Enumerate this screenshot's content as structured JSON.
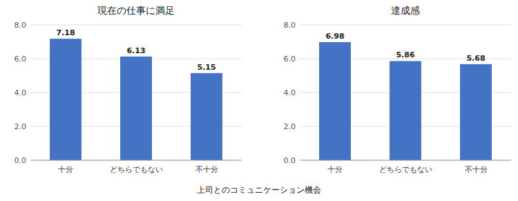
{
  "chart_data": [
    {
      "type": "bar",
      "title": "現在の仕事に満足",
      "categories": [
        "十分",
        "どちらでもない",
        "不十分"
      ],
      "values": [
        7.18,
        6.13,
        5.15
      ],
      "color": "#4472C4",
      "ylim": [
        0,
        8.0
      ],
      "yticks": [
        {
          "value": 0.0,
          "label": "0.0"
        },
        {
          "value": 2.0,
          "label": "2.0"
        },
        {
          "value": 4.0,
          "label": "4.0"
        },
        {
          "value": 6.0,
          "label": "6.0"
        },
        {
          "value": 8.0,
          "label": "8.0"
        }
      ],
      "grid": true,
      "data_labels": true,
      "x_label": "上司とのコミュニケーション機会"
    },
    {
      "type": "bar",
      "title": "達成感",
      "categories": [
        "十分",
        "どちらでもない",
        "不十分"
      ],
      "values": [
        6.98,
        5.86,
        5.68
      ],
      "color": "#4472C4",
      "ylim": [
        0,
        8.0
      ],
      "yticks": [
        {
          "value": 0.0,
          "label": "0.0"
        },
        {
          "value": 2.0,
          "label": "2.0"
        },
        {
          "value": 4.0,
          "label": "4.0"
        },
        {
          "value": 6.0,
          "label": "6.0"
        },
        {
          "value": 8.0,
          "label": "8.0"
        }
      ],
      "grid": true,
      "data_labels": true
    }
  ]
}
